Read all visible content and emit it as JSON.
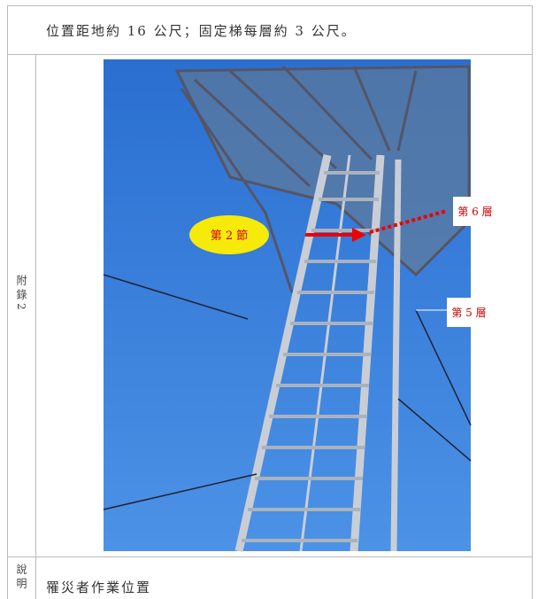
{
  "header": {
    "text": "位置距地約 16 公尺；固定梯每層約 3 公尺。"
  },
  "appendix": {
    "label": "附錄2"
  },
  "photo": {
    "section_label": "第 2 節",
    "level_6": "第 6 層",
    "level_5": "第 5 層"
  },
  "footer": {
    "label": "說明",
    "text": "罹災者作業位置"
  }
}
